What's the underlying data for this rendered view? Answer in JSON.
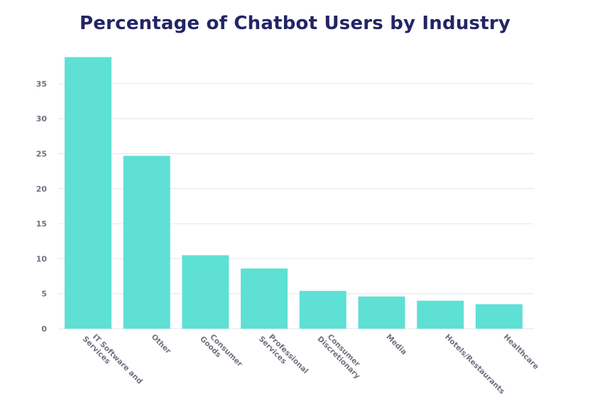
{
  "chart_data": {
    "type": "bar",
    "title": "Percentage of Chatbot Users by Industry",
    "xlabel": "",
    "ylabel": "",
    "categories": [
      [
        "IT Software and",
        "Services"
      ],
      [
        "Other"
      ],
      [
        "Consumer",
        "Goods"
      ],
      [
        "Professional",
        "Services"
      ],
      [
        "Consumer",
        "Discretionary"
      ],
      [
        "Media"
      ],
      [
        "Hotels/Restaurants"
      ],
      [
        "Healthcare"
      ]
    ],
    "values": [
      38.8,
      24.7,
      10.5,
      8.6,
      5.4,
      4.6,
      4.0,
      3.5
    ],
    "ylim": [
      0,
      40
    ],
    "yticks": [
      0,
      5,
      10,
      15,
      20,
      25,
      30,
      35
    ],
    "grid": true,
    "bar_color": "#5ee0d5",
    "grid_color": "#e6e6ea",
    "title_color": "#232566"
  }
}
